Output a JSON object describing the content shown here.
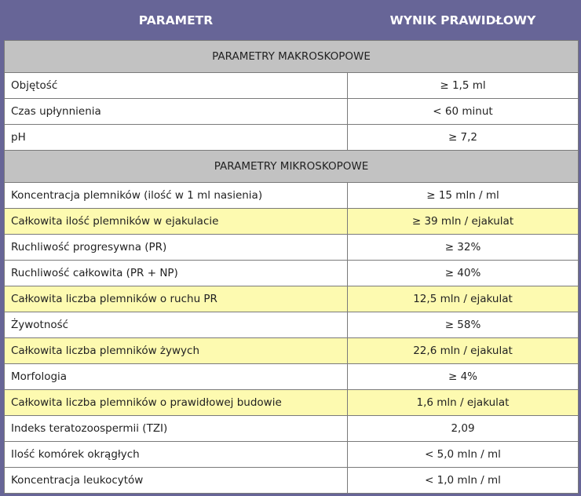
{
  "header": {
    "parameter": "PARAMETR",
    "result": "WYNIK PRAWIDŁOWY"
  },
  "colors": {
    "header_bg": "#676597",
    "section_bg": "#c2c2c2",
    "highlight_bg": "#fdfab0"
  },
  "sections": [
    {
      "title": "PARAMETRY MAKROSKOPOWE",
      "rows": [
        {
          "parameter": "Objętość",
          "value": "≥ 1,5 ml",
          "highlight": false
        },
        {
          "parameter": "Czas upłynnienia",
          "value": "< 60 minut",
          "highlight": false
        },
        {
          "parameter": "pH",
          "value": "≥ 7,2",
          "highlight": false
        }
      ]
    },
    {
      "title": "PARAMETRY MIKROSKOPOWE",
      "rows": [
        {
          "parameter": "Koncentracja plemników (ilość w 1 ml nasienia)",
          "value": "≥ 15 mln / ml",
          "highlight": false
        },
        {
          "parameter": "Całkowita ilość plemników w ejakulacie",
          "value": "≥ 39 mln / ejakulat",
          "highlight": true
        },
        {
          "parameter": "Ruchliwość progresywna (PR)",
          "value": "≥ 32%",
          "highlight": false
        },
        {
          "parameter": "Ruchliwość całkowita (PR + NP)",
          "value": "≥ 40%",
          "highlight": false
        },
        {
          "parameter": "Całkowita liczba plemników o ruchu PR",
          "value": "12,5 mln / ejakulat",
          "highlight": true
        },
        {
          "parameter": "Żywotność",
          "value": "≥ 58%",
          "highlight": false
        },
        {
          "parameter": "Całkowita liczba plemników żywych",
          "value": "22,6 mln / ejakulat",
          "highlight": true
        },
        {
          "parameter": "Morfologia",
          "value": "≥ 4%",
          "highlight": false
        },
        {
          "parameter": "Całkowita liczba plemników o prawidłowej budowie",
          "value": "1,6 mln / ejakulat",
          "highlight": true
        },
        {
          "parameter": "Indeks teratozoospermii (TZI)",
          "value": "2,09",
          "highlight": false
        },
        {
          "parameter": "Ilość komórek okrągłych",
          "value": "< 5,0 mln / ml",
          "highlight": false
        },
        {
          "parameter": "Koncentracja leukocytów",
          "value": "< 1,0 mln / ml",
          "highlight": false
        }
      ]
    }
  ]
}
